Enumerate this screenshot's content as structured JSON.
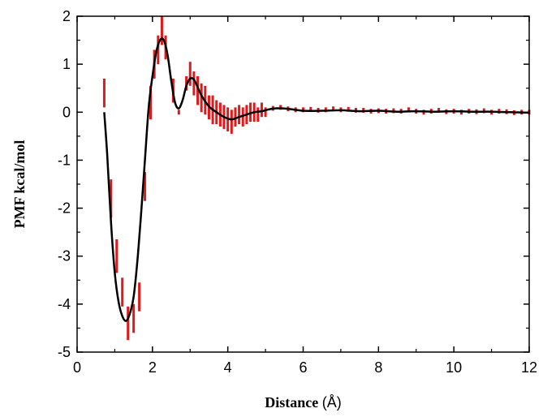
{
  "chart_data": {
    "type": "line",
    "title": "",
    "xlabel_main": "Distance",
    "xlabel_unit": "(Å)",
    "ylabel": "PMF kcal/mol",
    "xlim": [
      0,
      12
    ],
    "ylim": [
      -5,
      2
    ],
    "xticks": [
      0,
      2,
      4,
      6,
      8,
      10,
      12
    ],
    "yticks": [
      -5,
      -4,
      -3,
      -2,
      -1,
      0,
      1,
      2
    ],
    "legend": "none",
    "grid": false,
    "colors": {
      "fit": "#000000",
      "errorbars": "#e0191b"
    },
    "series": [
      {
        "kind": "line",
        "x": [
          0.72,
          0.8,
          0.9,
          1.0,
          1.1,
          1.2,
          1.3,
          1.4,
          1.5,
          1.6,
          1.7,
          1.8,
          1.9,
          2.0,
          2.1,
          2.2,
          2.3,
          2.4,
          2.5,
          2.6,
          2.7,
          2.8,
          2.9,
          3.0,
          3.1,
          3.2,
          3.3,
          3.5,
          3.7,
          3.9,
          4.1,
          4.3,
          4.5,
          4.7,
          4.9,
          5.1,
          5.3,
          5.6,
          6.0,
          6.5,
          7.0,
          7.5,
          8.0,
          8.5,
          9.0,
          9.5,
          10.0,
          10.5,
          11.0,
          11.5,
          12.0
        ],
        "y": [
          0.0,
          -0.9,
          -2.3,
          -3.35,
          -3.95,
          -4.25,
          -4.35,
          -4.2,
          -3.85,
          -3.1,
          -2.1,
          -1.0,
          0.1,
          0.75,
          1.25,
          1.5,
          1.5,
          1.2,
          0.65,
          0.2,
          0.08,
          0.25,
          0.55,
          0.7,
          0.68,
          0.52,
          0.35,
          0.12,
          0.0,
          -0.1,
          -0.15,
          -0.1,
          -0.05,
          0.0,
          0.02,
          0.06,
          0.08,
          0.07,
          0.03,
          0.03,
          0.04,
          0.02,
          0.03,
          0.01,
          0.02,
          0.01,
          0.02,
          0.01,
          0.01,
          0.0,
          -0.01
        ]
      },
      {
        "kind": "errorbars",
        "x": [
          0.72,
          0.9,
          1.05,
          1.2,
          1.35,
          1.5,
          1.65,
          1.8,
          1.95,
          2.05,
          2.15,
          2.25,
          2.35,
          2.55,
          2.7,
          2.9,
          3.0,
          3.1,
          3.2,
          3.3,
          3.4,
          3.5,
          3.6,
          3.7,
          3.8,
          3.9,
          4.0,
          4.1,
          4.2,
          4.3,
          4.4,
          4.5,
          4.6,
          4.7,
          4.8,
          4.9,
          5.0,
          5.2,
          5.4,
          5.6,
          5.8,
          6.0,
          6.2,
          6.4,
          6.6,
          6.8,
          7.0,
          7.2,
          7.4,
          7.6,
          7.8,
          8.0,
          8.2,
          8.4,
          8.6,
          8.8,
          9.0,
          9.2,
          9.4,
          9.6,
          9.8,
          10.0,
          10.2,
          10.4,
          10.6,
          10.8,
          11.0,
          11.2,
          11.4,
          11.6,
          11.8,
          12.0
        ],
        "y": [
          0.4,
          -1.8,
          -3.0,
          -3.75,
          -4.4,
          -4.3,
          -3.85,
          -1.55,
          0.2,
          1.0,
          1.3,
          1.7,
          1.35,
          0.45,
          0.0,
          0.6,
          0.8,
          0.6,
          0.45,
          0.3,
          0.25,
          0.1,
          0.05,
          0.0,
          -0.05,
          -0.1,
          -0.15,
          -0.2,
          -0.1,
          -0.05,
          -0.1,
          -0.05,
          0.0,
          0.0,
          -0.05,
          0.05,
          0.0,
          0.08,
          0.1,
          0.07,
          0.05,
          0.05,
          0.06,
          0.04,
          0.05,
          0.07,
          0.05,
          0.06,
          0.04,
          0.04,
          0.02,
          0.03,
          0.02,
          0.03,
          0.02,
          0.05,
          0.02,
          0.0,
          0.02,
          0.04,
          0.01,
          0.02,
          0.0,
          0.02,
          0.01,
          0.03,
          0.0,
          0.02,
          0.01,
          -0.01,
          0.0,
          0.0
        ],
        "err": [
          0.3,
          0.4,
          0.35,
          0.3,
          0.35,
          0.3,
          0.3,
          0.3,
          0.35,
          0.3,
          0.3,
          0.3,
          0.25,
          0.25,
          0.05,
          0.15,
          0.25,
          0.25,
          0.3,
          0.3,
          0.3,
          0.25,
          0.3,
          0.25,
          0.25,
          0.25,
          0.25,
          0.25,
          0.2,
          0.2,
          0.2,
          0.2,
          0.2,
          0.2,
          0.15,
          0.15,
          0.1,
          0.05,
          0.05,
          0.05,
          0.05,
          0.05,
          0.05,
          0.05,
          0.05,
          0.05,
          0.05,
          0.05,
          0.05,
          0.05,
          0.05,
          0.05,
          0.05,
          0.05,
          0.05,
          0.05,
          0.05,
          0.05,
          0.05,
          0.05,
          0.05,
          0.05,
          0.05,
          0.05,
          0.05,
          0.05,
          0.05,
          0.05,
          0.05,
          0.05,
          0.05,
          0.05
        ]
      }
    ]
  }
}
